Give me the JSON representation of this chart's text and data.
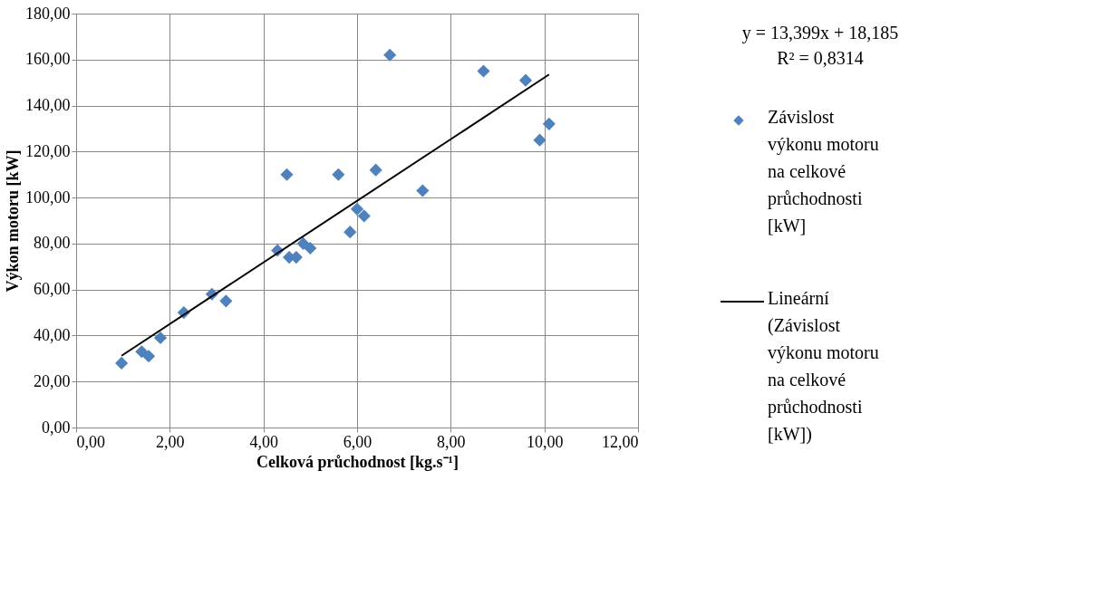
{
  "chart_data": {
    "type": "scatter",
    "xlabel": "Celková průchodnost [kg.s⁻¹]",
    "ylabel": "Výkon motoru [kW]",
    "xlim": [
      0,
      12
    ],
    "ylim": [
      0,
      180
    ],
    "xticks": [
      {
        "value": 0,
        "label": "0,00"
      },
      {
        "value": 2,
        "label": "2,00"
      },
      {
        "value": 4,
        "label": "4,00"
      },
      {
        "value": 6,
        "label": "6,00"
      },
      {
        "value": 8,
        "label": "8,00"
      },
      {
        "value": 10,
        "label": "10,00"
      },
      {
        "value": 12,
        "label": "12,00"
      }
    ],
    "yticks": [
      {
        "value": 0,
        "label": "0,00"
      },
      {
        "value": 20,
        "label": "20,00"
      },
      {
        "value": 40,
        "label": "40,00"
      },
      {
        "value": 60,
        "label": "60,00"
      },
      {
        "value": 80,
        "label": "80,00"
      },
      {
        "value": 100,
        "label": "100,00"
      },
      {
        "value": 120,
        "label": "120,00"
      },
      {
        "value": 140,
        "label": "140,00"
      },
      {
        "value": 160,
        "label": "160,00"
      },
      {
        "value": 180,
        "label": "180,00"
      }
    ],
    "grid": true,
    "legend": "right",
    "annotations": [
      "y = 13,399x + 18,185",
      "R² = 0,8314"
    ],
    "series": [
      {
        "name": "Závislost výkonu motoru na celkové průchodnosti [kW]",
        "marker": "diamond",
        "color": "#4f81bd",
        "x": [
          0.97,
          1.4,
          1.55,
          1.8,
          2.3,
          2.9,
          3.2,
          4.3,
          4.5,
          4.55,
          4.7,
          4.85,
          5.0,
          5.6,
          5.85,
          6.0,
          6.15,
          6.4,
          6.7,
          7.4,
          8.7,
          9.6,
          9.9,
          10.1
        ],
        "values": [
          28,
          33,
          31,
          39,
          50,
          58,
          55,
          77,
          110,
          74,
          74,
          80,
          78,
          110,
          85,
          95,
          92,
          112,
          162,
          103,
          155,
          151,
          125,
          132
        ]
      },
      {
        "name": "Lineární (Závislost výkonu motoru na celkové průchodnosti [kW])",
        "type": "line",
        "line_style": "solid",
        "color": "#000000",
        "x": [
          0.97,
          10.1
        ],
        "values": [
          31.2,
          153.5
        ]
      }
    ]
  }
}
